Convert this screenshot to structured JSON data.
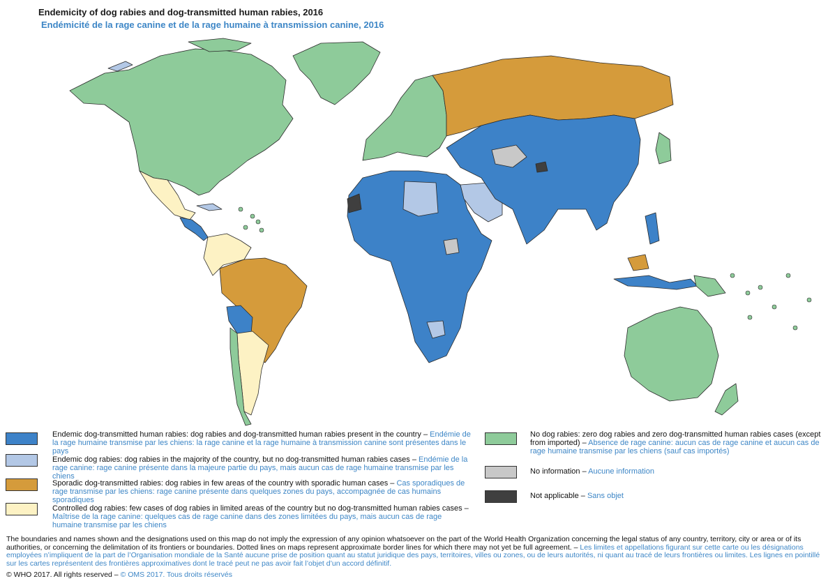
{
  "title": "Endemicity of dog rabies and dog-transmitted human rabies, 2016",
  "subtitle": "Endémicité de la rage canine et de la rage humaine à transmission canine, 2016",
  "colors": {
    "endemic_human": "#3d82c8",
    "endemic_dog": "#b3c8e6",
    "sporadic": "#d59b3b",
    "controlled": "#fdf2c4",
    "no_rabies": "#8ecb9a",
    "no_info": "#c8c8c8",
    "not_applicable": "#3f3f3f",
    "ocean": "#ffffff",
    "border": "#2a2a2a"
  },
  "legend": [
    {
      "key": "endemic_human",
      "en": "Endemic dog-transmitted human rabies: dog rabies and dog-transmitted human rabies present in the country – ",
      "fr": "Endémie de la rage humaine transmise par les chiens: la rage canine et la rage humaine à transmission canine sont présentes dans le pays"
    },
    {
      "key": "endemic_dog",
      "en": "Endemic dog rabies: dog rabies in the majority of the country, but no dog-transmitted human rabies cases – ",
      "fr": "Endémie de la rage canine: rage canine présente dans la majeure partie du pays, mais aucun cas de rage humaine transmise par les chiens"
    },
    {
      "key": "sporadic",
      "en": "Sporadic dog-transmitted rabies: dog rabies in few areas of the country with sporadic human cases – ",
      "fr": "Cas sporadiques de rage transmise par les chiens: rage canine présente dans quelques zones du pays, accompagnée de cas humains sporadiques"
    },
    {
      "key": "controlled",
      "en": "Controlled dog rabies: few cases of dog rabies in limited areas of the country but no dog-transmitted human rabies cases – ",
      "fr": "Maîtrise de la rage canine: quelques cas de rage canine dans des zones limitées du pays, mais aucun cas de rage humaine transmise par les chiens"
    },
    {
      "key": "no_rabies",
      "en": "No dog rabies: zero dog rabies and zero dog-transmitted human rabies cases (except from imported) – ",
      "fr": "Absence de rage canine: aucun cas de rage canine et aucun cas de rage humaine transmise par les chiens (sauf cas importés)"
    },
    {
      "key": "no_info",
      "en": "No information – ",
      "fr": "Aucune information"
    },
    {
      "key": "not_applicable",
      "en": "Not applicable – ",
      "fr": "Sans objet"
    }
  ],
  "disclaimer": {
    "en": "The boundaries and names shown and the designations used on this map do not imply the expression of any opinion whatsoever on the part of the World Health Organization concerning the legal status of any country, territory, city or area or of its authorities, or concerning the delimitation of its frontiers or boundaries. Dotted lines on maps represent approximate border lines for which there may not yet be full agreement. – ",
    "fr": "Les limites et appellations figurant sur cette carte ou les désignations employées n’impliquent de la part de l’Organisation mondiale de la Santé aucune prise de position quant au statut juridique des pays, territoires, villes ou zones, ou de leurs autorités, ni quant au tracé de leurs frontières ou limites. Les lignes en pointillé sur les cartes représentent des frontières approximatives dont le tracé peut ne pas avoir fait l’objet d’un accord définitif."
  },
  "copyright": {
    "en": "© WHO 2017. All rights reserved – ",
    "fr": "© OMS 2017. Tous droits réservés"
  },
  "map_regions": [
    {
      "name": "North America",
      "category": "no_rabies"
    },
    {
      "name": "Greenland",
      "category": "no_rabies"
    },
    {
      "name": "Western Europe",
      "category": "no_rabies"
    },
    {
      "name": "Russia",
      "category": "sporadic"
    },
    {
      "name": "Mexico",
      "category": "controlled"
    },
    {
      "name": "Central America",
      "category": "endemic_human"
    },
    {
      "name": "Brazil",
      "category": "sporadic"
    },
    {
      "name": "Bolivia",
      "category": "endemic_human"
    },
    {
      "name": "Argentina",
      "category": "controlled"
    },
    {
      "name": "Chile",
      "category": "no_rabies"
    },
    {
      "name": "Africa",
      "category": "endemic_human"
    },
    {
      "name": "Libya",
      "category": "endemic_dog"
    },
    {
      "name": "Western Sahara",
      "category": "not_applicable"
    },
    {
      "name": "Saudi Arabia",
      "category": "endemic_dog"
    },
    {
      "name": "Asia",
      "category": "endemic_human"
    },
    {
      "name": "Australia",
      "category": "no_rabies"
    },
    {
      "name": "Japan",
      "category": "no_rabies"
    }
  ]
}
